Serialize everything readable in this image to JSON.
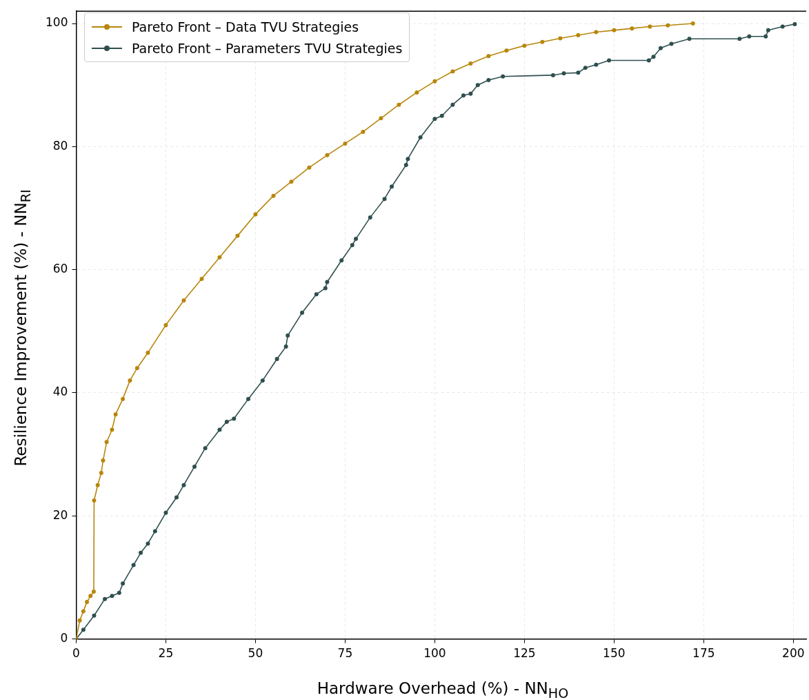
{
  "chart_data": {
    "type": "line",
    "xlabel": "Hardware Overhead (%) - NN$_{HO}$",
    "ylabel": "Resilience Improvement (%) - NN$_{RI}$",
    "xlim": [
      0,
      203.6
    ],
    "xticks": [
      0,
      25,
      50,
      75,
      100,
      125,
      150,
      175,
      200
    ],
    "ylim": [
      0,
      102
    ],
    "yticks": [
      0,
      20,
      40,
      60,
      80,
      100
    ],
    "grid": true,
    "legend": "top left",
    "marker": "circle",
    "line_style": "solid",
    "series": [
      {
        "name": "Pareto Front – Data TVU Strategies",
        "color": "#b8860b",
        "x": [
          0,
          1,
          2,
          3,
          4,
          4.9,
          5,
          6,
          7,
          7.5,
          8.5,
          10,
          11,
          13,
          15,
          17,
          20,
          25,
          30,
          35,
          40,
          45,
          50,
          55,
          60,
          65,
          70,
          75,
          80,
          85,
          90,
          95,
          100,
          105,
          110,
          115,
          120,
          125,
          130,
          135,
          140,
          145,
          150,
          155,
          160,
          165,
          172
        ],
        "values": [
          0,
          3,
          4.5,
          6,
          7,
          7.7,
          22.5,
          25,
          27,
          29,
          32,
          34,
          36.5,
          39,
          42,
          44,
          46.5,
          51,
          55,
          58.5,
          62,
          65.5,
          69,
          72,
          74.3,
          76.6,
          78.6,
          80.5,
          82.4,
          84.6,
          86.8,
          88.8,
          90.6,
          92.2,
          93.5,
          94.7,
          95.6,
          96.4,
          97,
          97.6,
          98.1,
          98.6,
          98.9,
          99.2,
          99.5,
          99.7,
          100
        ]
      },
      {
        "name": "Pareto Front – Parameters TVU Strategies",
        "color": "#2f4f4f",
        "x": [
          0,
          2,
          5,
          8,
          10,
          12,
          13,
          16,
          18,
          20,
          22,
          25,
          28,
          30,
          33,
          36,
          40,
          42,
          44,
          48,
          52,
          56,
          58.5,
          59,
          63,
          67,
          69.5,
          70,
          74,
          77,
          78,
          82,
          86,
          88,
          92,
          92.5,
          96,
          100,
          102,
          105,
          108,
          110,
          112,
          115,
          119,
          133,
          136,
          140,
          142,
          145,
          148.6,
          159.7,
          161,
          163,
          166,
          171,
          185,
          187.7,
          192.3,
          193,
          197,
          200.4
        ],
        "values": [
          0,
          1.5,
          3.8,
          6.5,
          7,
          7.5,
          9,
          12,
          14,
          15.5,
          17.5,
          20.5,
          23,
          25,
          28,
          31,
          34,
          35.3,
          35.8,
          39,
          42,
          45.5,
          47.5,
          49.3,
          53,
          56,
          57,
          58,
          61.5,
          64,
          65,
          68.5,
          71.5,
          73.5,
          77,
          78,
          81.5,
          84.5,
          85,
          86.8,
          88.3,
          88.6,
          90,
          90.8,
          91.4,
          91.6,
          91.9,
          92,
          92.8,
          93.3,
          94,
          94,
          94.6,
          96,
          96.7,
          97.5,
          97.5,
          97.9,
          97.9,
          98.9,
          99.5,
          99.9
        ]
      }
    ]
  }
}
